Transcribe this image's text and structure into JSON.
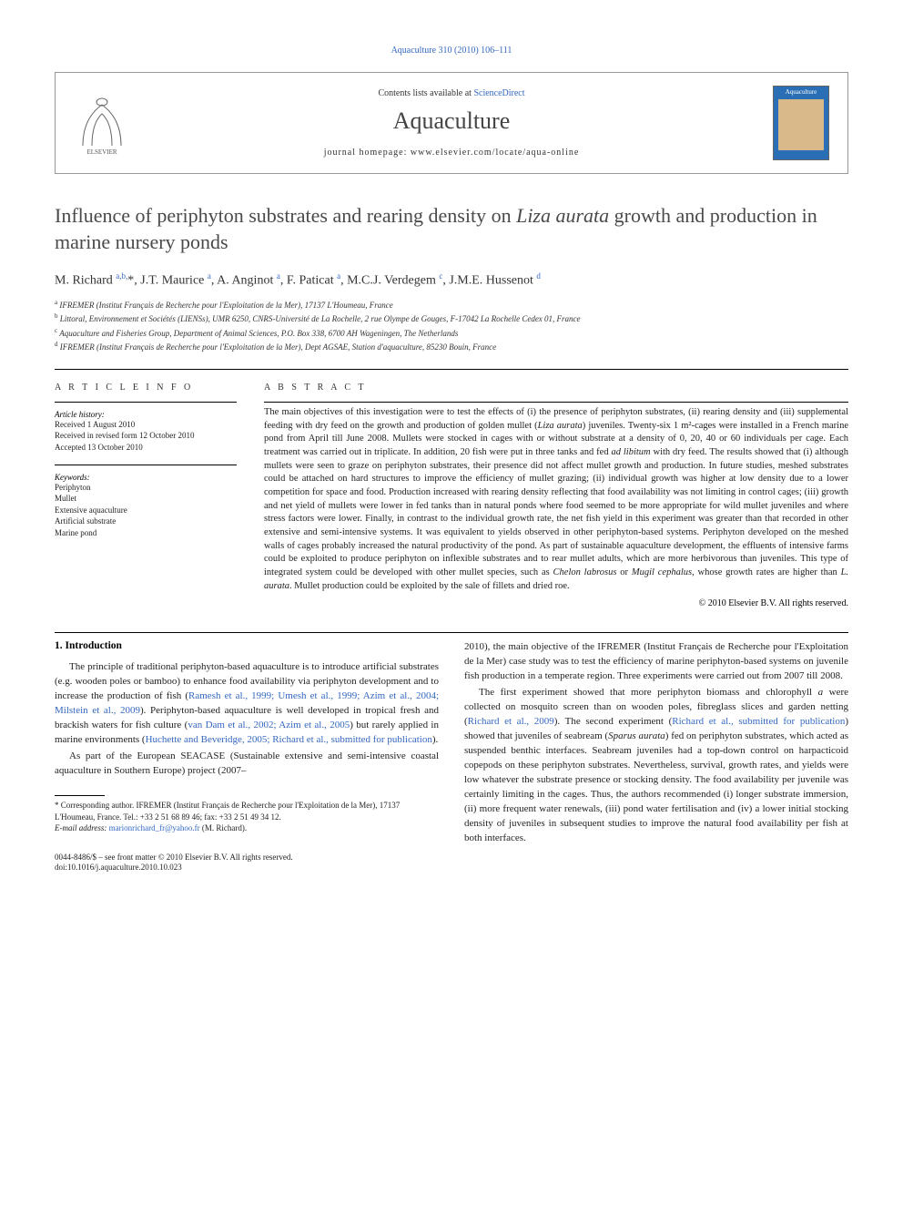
{
  "top_citation": "Aquaculture 310 (2010) 106–111",
  "header": {
    "contents_prefix": "Contents lists available at ",
    "contents_link": "ScienceDirect",
    "journal": "Aquaculture",
    "homepage_prefix": "journal homepage: ",
    "homepage_url": "www.elsevier.com/locate/aqua-online",
    "cover_label": "Aquaculture"
  },
  "title_parts": {
    "pre": "Influence of periphyton substrates and rearing density on ",
    "species": "Liza aurata",
    "post": " growth and production in marine nursery ponds"
  },
  "authors_html": "M. Richard <sup>a,b,</sup>*, J.T. Maurice <sup>a</sup>, A. Anginot <sup>a</sup>, F. Paticat <sup>a</sup>, M.C.J. Verdegem <sup>c</sup>, J.M.E. Hussenot <sup>d</sup>",
  "affiliations": [
    {
      "sup": "a",
      "text": "IFREMER (Institut Français de Recherche pour l'Exploitation de la Mer), 17137 L'Houmeau, France"
    },
    {
      "sup": "b",
      "text": "Littoral, Environnement et Sociétés (LIENSs), UMR 6250, CNRS-Université de La Rochelle, 2 rue Olympe de Gouges, F-17042 La Rochelle Cedex 01, France"
    },
    {
      "sup": "c",
      "text": "Aquaculture and Fisheries Group, Department of Animal Sciences, P.O. Box 338, 6700 AH Wageningen, The Netherlands"
    },
    {
      "sup": "d",
      "text": "IFREMER (Institut Français de Recherche pour l'Exploitation de la Mer), Dept AGSAE, Station d'aquaculture, 85230 Bouin, France"
    }
  ],
  "info": {
    "heading": "A R T I C L E   I N F O",
    "history_label": "Article history:",
    "history_lines": [
      "Received 1 August 2010",
      "Received in revised form 12 October 2010",
      "Accepted 13 October 2010"
    ],
    "keywords_label": "Keywords:",
    "keywords": [
      "Periphyton",
      "Mullet",
      "Extensive aquaculture",
      "Artificial substrate",
      "Marine pond"
    ]
  },
  "abstract": {
    "heading": "A B S T R A C T",
    "text": "The main objectives of this investigation were to test the effects of (i) the presence of periphyton substrates, (ii) rearing density and (iii) supplemental feeding with dry feed on the growth and production of golden mullet (<i>Liza aurata</i>) juveniles. Twenty-six 1 m²-cages were installed in a French marine pond from April till June 2008. Mullets were stocked in cages with or without substrate at a density of 0, 20, 40 or 60 individuals per cage. Each treatment was carried out in triplicate. In addition, 20 fish were put in three tanks and fed <i>ad libitum</i> with dry feed. The results showed that (i) although mullets were seen to graze on periphyton substrates, their presence did not affect mullet growth and production. In future studies, meshed substrates could be attached on hard structures to improve the efficiency of mullet grazing; (ii) individual growth was higher at low density due to a lower competition for space and food. Production increased with rearing density reflecting that food availability was not limiting in control cages; (iii) growth and net yield of mullets were lower in fed tanks than in natural ponds where food seemed to be more appropriate for wild mullet juveniles and where stress factors were lower. Finally, in contrast to the individual growth rate, the net fish yield in this experiment was greater than that recorded in other extensive and semi-intensive systems. It was equivalent to yields observed in other periphyton-based systems. Periphyton developed on the meshed walls of cages probably increased the natural productivity of the pond. As part of sustainable aquaculture development, the effluents of intensive farms could be exploited to produce periphyton on inflexible substrates and to rear mullet adults, which are more herbivorous than juveniles. This type of integrated system could be developed with other mullet species, such as <i>Chelon labrosus</i> or <i>Mugil cephalus</i>, whose growth rates are higher than <i>L. aurata</i>. Mullet production could be exploited by the sale of fillets and dried roe.",
    "copyright": "© 2010 Elsevier B.V. All rights reserved."
  },
  "section1_heading": "1. Introduction",
  "col_left_paras": [
    "The principle of traditional periphyton-based aquaculture is to introduce artificial substrates (e.g. wooden poles or bamboo) to enhance food availability via periphyton development and to increase the production of fish (<a>Ramesh et al., 1999; Umesh et al., 1999; Azim et al., 2004; Milstein et al., 2009</a>). Periphyton-based aquaculture is well developed in tropical fresh and brackish waters for fish culture (<a>van Dam et al., 2002; Azim et al., 2005</a>) but rarely applied in marine environments (<a>Huchette and Beveridge, 2005; Richard et al., submitted for publication</a>).",
    "As part of the European SEACASE (Sustainable extensive and semi-intensive coastal aquaculture in Southern Europe) project (2007–"
  ],
  "col_right_paras": [
    "2010), the main objective of the IFREMER (Institut Français de Recherche pour l'Exploitation de la Mer) case study was to test the efficiency of marine periphyton-based systems on juvenile fish production in a temperate region. Three experiments were carried out from 2007 till 2008.",
    "The first experiment showed that more periphyton biomass and chlorophyll <i>a</i> were collected on mosquito screen than on wooden poles, fibreglass slices and garden netting (<a>Richard et al., 2009</a>). The second experiment (<a>Richard et al., submitted for publication</a>) showed that juveniles of seabream (<i>Sparus aurata</i>) fed on periphyton substrates, which acted as suspended benthic interfaces. Seabream juveniles had a top-down control on harpacticoid copepods on these periphyton substrates. Nevertheless, survival, growth rates, and yields were low whatever the substrate presence or stocking density. The food availability per juvenile was certainly limiting in the cages. Thus, the authors recommended (i) longer substrate immersion, (ii) more frequent water renewals, (iii) pond water fertilisation and (iv) a lower initial stocking density of juveniles in subsequent studies to improve the natural food availability per fish at both interfaces."
  ],
  "footnote": {
    "corresponding": "* Corresponding author. IFREMER (Institut Français de Recherche pour l'Exploitation de la Mer), 17137 L'Houmeau, France. Tel.: +33 2 51 68 89 46; fax: +33 2 51 49 34 12.",
    "email_label": "E-mail address: ",
    "email": "marionrichard_fr@yahoo.fr",
    "email_person": " (M. Richard)."
  },
  "bottom": {
    "line1": "0044-8486/$ – see front matter © 2010 Elsevier B.V. All rights reserved.",
    "line2": "doi:10.1016/j.aquaculture.2010.10.023"
  },
  "colors": {
    "link": "#3468c1",
    "text": "#222222",
    "heading": "#4a4a4a",
    "cover_bg": "#2a6fb5",
    "cover_img": "#d9b98a"
  }
}
